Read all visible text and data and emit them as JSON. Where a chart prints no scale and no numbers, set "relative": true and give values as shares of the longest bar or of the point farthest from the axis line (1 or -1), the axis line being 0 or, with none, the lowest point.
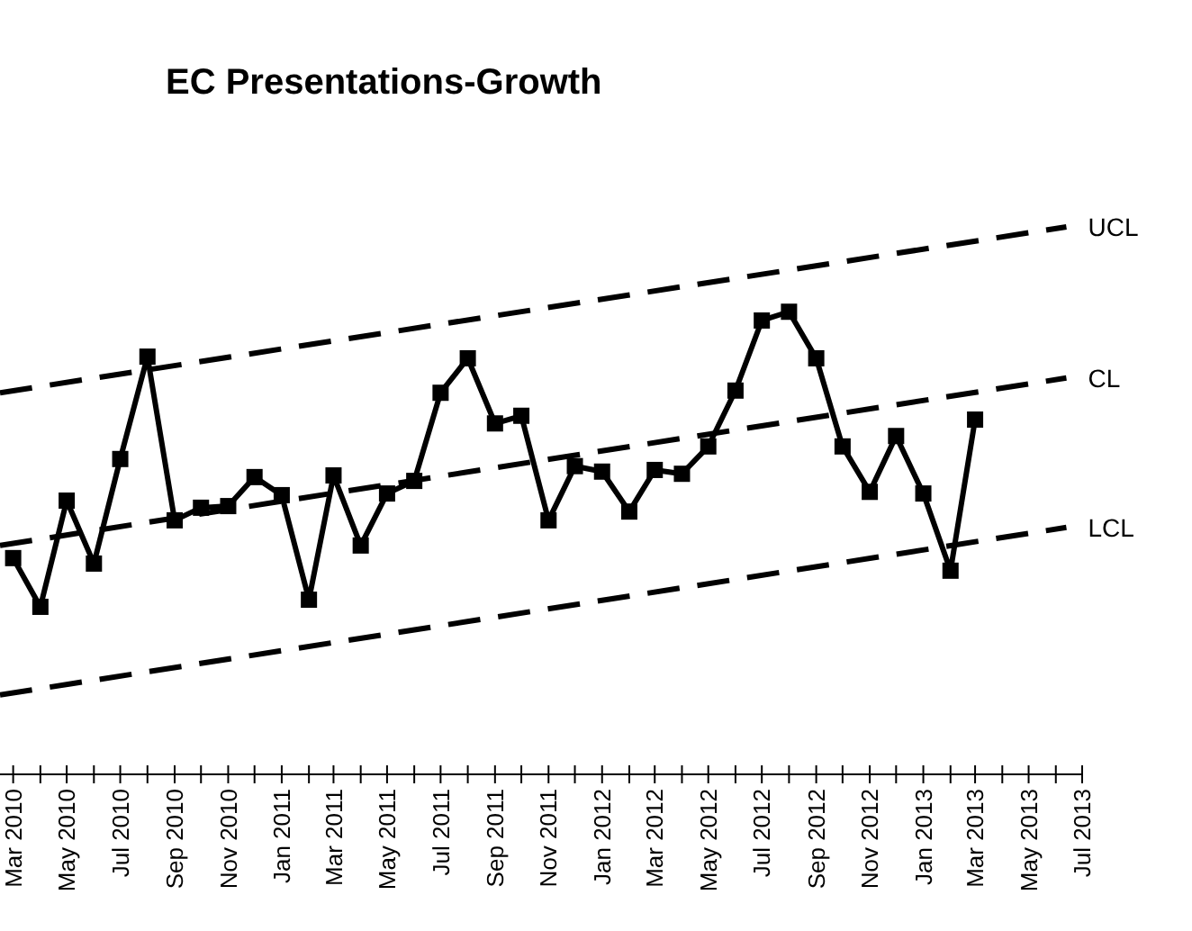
{
  "chart_data": {
    "type": "line",
    "title": "EC Presentations-Growth",
    "relative": true,
    "legend": false,
    "xlim": [
      "2010-02-14",
      "2013-07-01"
    ],
    "xticks": [
      {
        "value": "2010-03",
        "label": "Mar 2010"
      },
      {
        "value": "2010-04",
        "label": null
      },
      {
        "value": "2010-05",
        "label": "May 2010"
      },
      {
        "value": "2010-06",
        "label": null
      },
      {
        "value": "2010-07",
        "label": "Jul 2010"
      },
      {
        "value": "2010-08",
        "label": null
      },
      {
        "value": "2010-09",
        "label": "Sep 2010"
      },
      {
        "value": "2010-10",
        "label": null
      },
      {
        "value": "2010-11",
        "label": "Nov 2010"
      },
      {
        "value": "2010-12",
        "label": null
      },
      {
        "value": "2011-01",
        "label": "Jan 2011"
      },
      {
        "value": "2011-02",
        "label": null
      },
      {
        "value": "2011-03",
        "label": "Mar 2011"
      },
      {
        "value": "2011-04",
        "label": null
      },
      {
        "value": "2011-05",
        "label": "May 2011"
      },
      {
        "value": "2011-06",
        "label": null
      },
      {
        "value": "2011-07",
        "label": "Jul 2011"
      },
      {
        "value": "2011-08",
        "label": null
      },
      {
        "value": "2011-09",
        "label": "Sep 2011"
      },
      {
        "value": "2011-10",
        "label": null
      },
      {
        "value": "2011-11",
        "label": "Nov 2011"
      },
      {
        "value": "2011-12",
        "label": null
      },
      {
        "value": "2012-01",
        "label": "Jan 2012"
      },
      {
        "value": "2012-02",
        "label": null
      },
      {
        "value": "2012-03",
        "label": "Mar 2012"
      },
      {
        "value": "2012-04",
        "label": null
      },
      {
        "value": "2012-05",
        "label": "May 2012"
      },
      {
        "value": "2012-06",
        "label": null
      },
      {
        "value": "2012-07",
        "label": "Jul 2012"
      },
      {
        "value": "2012-08",
        "label": null
      },
      {
        "value": "2012-09",
        "label": "Sep 2012"
      },
      {
        "value": "2012-10",
        "label": null
      },
      {
        "value": "2012-11",
        "label": "Nov 2012"
      },
      {
        "value": "2012-12",
        "label": null
      },
      {
        "value": "2013-01",
        "label": "Jan 2013"
      },
      {
        "value": "2013-02",
        "label": null
      },
      {
        "value": "2013-03",
        "label": "Mar 2013"
      },
      {
        "value": "2013-04",
        "label": null
      },
      {
        "value": "2013-05",
        "label": "May 2013"
      },
      {
        "value": "2013-06",
        "label": null
      },
      {
        "value": "2013-07",
        "label": "Jul 2013"
      }
    ],
    "series": [
      {
        "color": "#000000",
        "marker": "square",
        "line_style": "solid",
        "x": [
          "2010-03",
          "2010-04",
          "2010-05",
          "2010-06",
          "2010-07",
          "2010-08",
          "2010-09",
          "2010-10",
          "2010-11",
          "2010-12",
          "2011-01",
          "2011-02",
          "2011-03",
          "2011-04",
          "2011-05",
          "2011-06",
          "2011-07",
          "2011-08",
          "2011-09",
          "2011-10",
          "2011-11",
          "2011-12",
          "2012-01",
          "2012-02",
          "2012-03",
          "2012-04",
          "2012-05",
          "2012-06",
          "2012-07",
          "2012-08",
          "2012-09",
          "2012-10",
          "2012-11",
          "2012-12",
          "2013-01",
          "2013-02",
          "2013-03"
        ],
        "values": [
          0.395,
          0.306,
          0.5,
          0.385,
          0.576,
          0.763,
          0.464,
          0.487,
          0.49,
          0.543,
          0.51,
          0.319,
          0.546,
          0.418,
          0.513,
          0.536,
          0.697,
          0.76,
          0.641,
          0.655,
          0.464,
          0.563,
          0.553,
          0.48,
          0.556,
          0.549,
          0.599,
          0.701,
          0.829,
          0.845,
          0.76,
          0.599,
          0.516,
          0.618,
          0.513,
          0.372,
          0.648
        ]
      },
      {
        "name": "UCL",
        "color": "#000000",
        "marker": "none",
        "line_style": "dashed",
        "x": [
          "2010-02-14",
          "2013-06-13"
        ],
        "values": [
          0.697,
          1
        ]
      },
      {
        "name": "CL",
        "color": "#000000",
        "marker": "none",
        "line_style": "dashed",
        "x": [
          "2010-02-14",
          "2013-06-13"
        ],
        "values": [
          0.418,
          0.724
        ]
      },
      {
        "name": "LCL",
        "color": "#000000",
        "marker": "none",
        "line_style": "dashed",
        "x": [
          "2010-02-14",
          "2013-06-13"
        ],
        "values": [
          0.145,
          0.451
        ]
      }
    ]
  }
}
